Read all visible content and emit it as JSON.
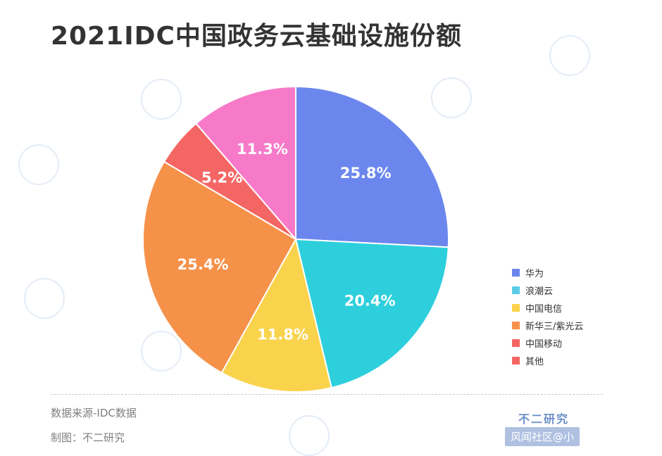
{
  "title": "2021IDC中国政务云基础设施份额",
  "chart_data": {
    "type": "pie",
    "categories": [
      "华为",
      "浪潮云",
      "中国电信",
      "新华三/紫光云",
      "中国移动",
      "其他"
    ],
    "values": [
      25.8,
      20.4,
      11.8,
      25.4,
      5.2,
      11.3
    ],
    "labels": [
      "25.8%",
      "20.4%",
      "11.8%",
      "25.4%",
      "5.2%",
      "11.3%"
    ],
    "colors": [
      "#6b87ee",
      "#2ecfdc",
      "#fad34c",
      "#f59149",
      "#f46664",
      "#f77ac9"
    ],
    "legend_colors": [
      "#6b87ee",
      "#5ccde6",
      "#fad34c",
      "#f59149",
      "#f46664",
      "#f46664"
    ],
    "legend_position": "right"
  },
  "footer": {
    "source": "数据来源-IDC数据",
    "maker": "制图：不二研究",
    "brand": "不二研究",
    "watermark": "风闻社区@小"
  }
}
